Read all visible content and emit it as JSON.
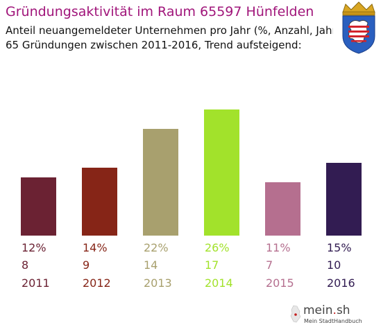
{
  "header": {
    "title": "Gründungsaktivität im Raum 65597 Hünfelden",
    "subtitle_line1": "Anteil neuangemeldeter Unternehmen pro Jahr (%, Anzahl, Jahr)",
    "subtitle_line2": "65 Gründungen zwischen 2011-2016, Trend aufsteigend:"
  },
  "crest": {
    "icon": "hessen-coat-of-arms-icon"
  },
  "chart_data": {
    "type": "bar",
    "categories": [
      "2011",
      "2012",
      "2013",
      "2014",
      "2015",
      "2016"
    ],
    "values": [
      12,
      14,
      22,
      26,
      11,
      15
    ],
    "counts": [
      "8",
      "9",
      "14",
      "17",
      "7",
      "10"
    ],
    "percent_labels": [
      "12%",
      "14%",
      "22%",
      "26%",
      "11%",
      "15%"
    ],
    "colors": [
      "#6b2233",
      "#862517",
      "#a8a06e",
      "#a2e22b",
      "#b56f8f",
      "#321c52"
    ],
    "ylim": [
      0,
      26
    ],
    "grid": false,
    "title": "Gründungsaktivität im Raum 65597 Hünfelden"
  },
  "logo": {
    "name_main": "mein",
    "name_dot": ".",
    "name_tld": "sh",
    "tagline": "Mein StadtHandbuch"
  }
}
